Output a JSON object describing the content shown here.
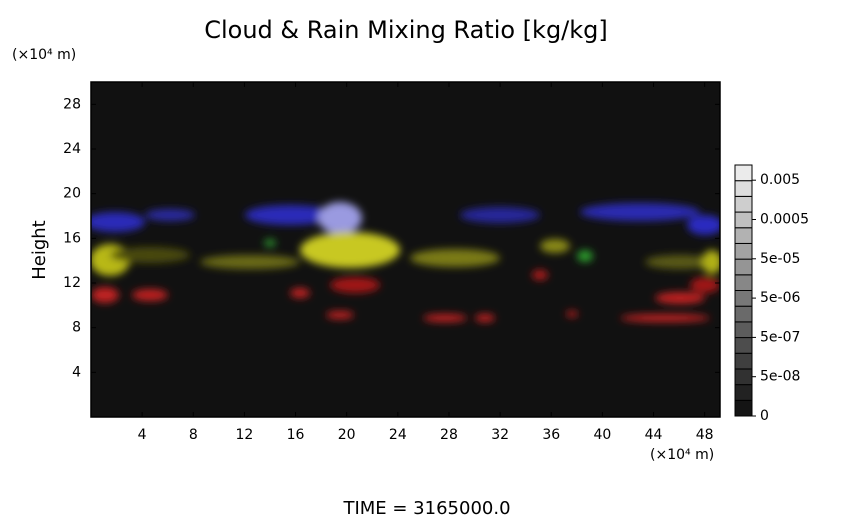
{
  "chart_data": {
    "type": "field",
    "title": "Cloud & Rain Mixing Ratio [kg/kg]",
    "x_unit": "(×10⁴ m)",
    "y_unit": "(×10⁴ m)",
    "ylabel": "Height",
    "xlim": [
      0,
      49.2
    ],
    "xticks": [
      4,
      8,
      12,
      16,
      20,
      24,
      28,
      32,
      36,
      40,
      44,
      48
    ],
    "ylim": [
      0,
      30
    ],
    "yticks": [
      4,
      8,
      12,
      16,
      20,
      24,
      28
    ],
    "colorbar": {
      "ticks": [
        0,
        {
          "value": 5e-08,
          "label": "5e-08"
        },
        {
          "value": 5e-07,
          "label": "5e-07"
        },
        {
          "value": 5e-06,
          "label": "5e-06"
        },
        {
          "value": 5e-05,
          "label": "5e-05"
        },
        0.0005,
        0.005
      ]
    },
    "footer": "TIME = 3165000.0"
  }
}
